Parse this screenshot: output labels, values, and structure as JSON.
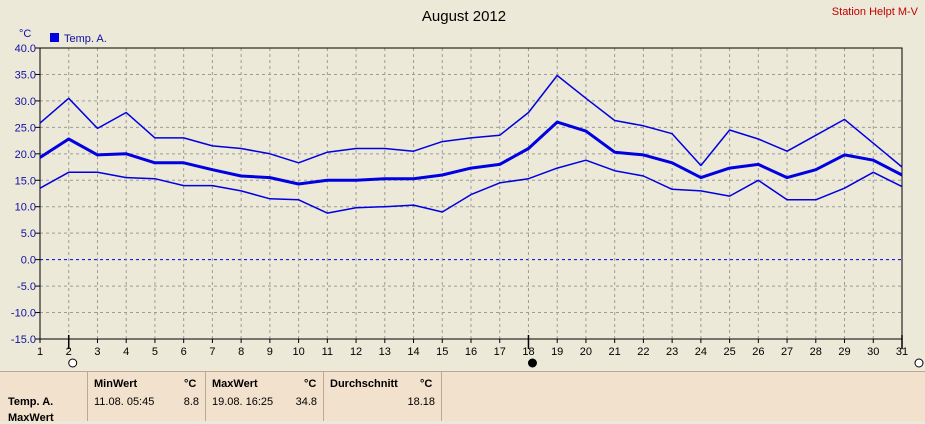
{
  "chart_data": {
    "type": "line",
    "title": "August 2012",
    "station": "Station Helpt M-V",
    "ylabel": "°C",
    "ylim": [
      -15,
      40
    ],
    "yticks": [
      "40.0",
      "35.0",
      "30.0",
      "25.0",
      "20.0",
      "15.0",
      "10.0",
      "5.0",
      "0.0",
      "-5.0",
      "-10.0",
      "-15.0"
    ],
    "x": [
      1,
      2,
      3,
      4,
      5,
      6,
      7,
      8,
      9,
      10,
      11,
      12,
      13,
      14,
      15,
      16,
      17,
      18,
      19,
      20,
      21,
      22,
      23,
      24,
      25,
      26,
      27,
      28,
      29,
      30,
      31
    ],
    "grid": true,
    "legend": "top-left",
    "series": [
      {
        "name": "Temp. A.",
        "role": "max",
        "width": 1.5,
        "values": [
          25.8,
          30.5,
          24.8,
          27.8,
          23.0,
          23.0,
          21.5,
          21.0,
          20.0,
          18.3,
          20.3,
          21.0,
          21.0,
          20.5,
          22.3,
          23.0,
          23.5,
          27.8,
          34.8,
          30.5,
          26.3,
          25.3,
          23.8,
          17.8,
          24.5,
          22.8,
          20.5,
          23.5,
          26.5,
          22.0,
          17.5
        ]
      },
      {
        "role": "mean",
        "width": 3,
        "values": [
          19.3,
          22.8,
          19.8,
          20.0,
          18.3,
          18.3,
          17.0,
          15.8,
          15.5,
          14.3,
          15.0,
          15.0,
          15.3,
          15.3,
          16.0,
          17.3,
          18.0,
          21.0,
          26.0,
          24.3,
          20.3,
          19.8,
          18.3,
          15.5,
          17.3,
          18.0,
          15.5,
          17.0,
          19.8,
          18.8,
          16.0
        ]
      },
      {
        "role": "min",
        "width": 1.5,
        "values": [
          13.5,
          16.5,
          16.5,
          15.5,
          15.3,
          14.0,
          14.0,
          13.0,
          11.5,
          11.3,
          8.8,
          9.8,
          10.0,
          10.3,
          9.0,
          12.3,
          14.5,
          15.3,
          17.3,
          18.8,
          16.8,
          15.8,
          13.3,
          13.0,
          12.0,
          15.0,
          11.3,
          11.3,
          13.5,
          16.5,
          13.8
        ]
      }
    ],
    "markers": [
      {
        "x": 2,
        "style": "open"
      },
      {
        "x": 18,
        "style": "filled"
      },
      {
        "x": 31,
        "style": "open"
      }
    ]
  },
  "stats": {
    "row1_label": "Temp. A.",
    "row2_label": "MaxWert",
    "min_header": "MinWert",
    "max_header": "MaxWert",
    "avg_header": "Durchschnitt",
    "unit": "°C",
    "min_time": "11.08.  05:45",
    "min_value": "8.8",
    "max_time": "19.08.  16:25",
    "max_value": "34.8",
    "avg_value": "18.18"
  },
  "colors": {
    "line": "#0000E0",
    "grid": "#9C9C9C",
    "zero": "#0000E0",
    "station": "#C00000"
  }
}
